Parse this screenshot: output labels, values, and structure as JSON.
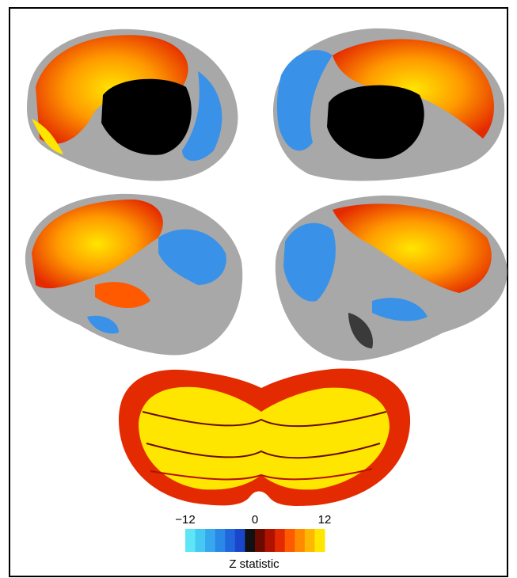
{
  "colorbar": {
    "label": "Z statistic",
    "lim": [
      -12,
      12
    ],
    "ticks": [
      {
        "value": -12,
        "label": "−12"
      },
      0,
      12
    ],
    "colors": [
      "#5ee6f7",
      "#45c8f2",
      "#35a8ee",
      "#2a88e6",
      "#2066dc",
      "#1a46cc",
      "#111111",
      "#6a0a00",
      "#b01200",
      "#e42a00",
      "#ff5a00",
      "#ff8a00",
      "#ffb800",
      "#ffe600"
    ]
  }
}
